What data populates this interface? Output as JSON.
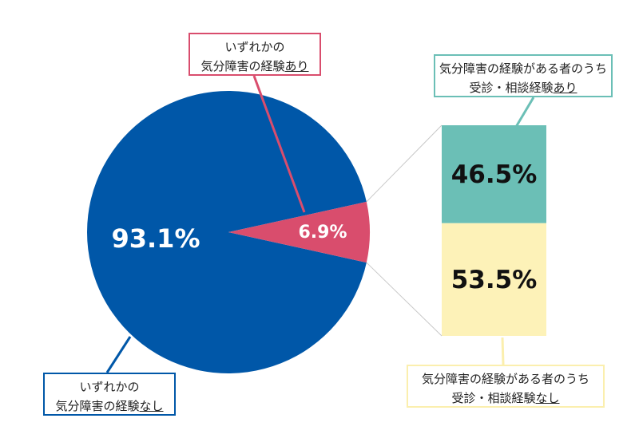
{
  "chart_data": [
    {
      "type": "pie",
      "slices": [
        {
          "value": 93.1,
          "display": "93.1%",
          "label": [
            "いずれかの",
            "気分障害の経験",
            "なし"
          ],
          "color": "#0057A8"
        },
        {
          "value": 6.9,
          "display": "6.9%",
          "label": [
            "いずれかの",
            "気分障害の経験",
            "あり"
          ],
          "color": "#D94D6D"
        }
      ]
    },
    {
      "type": "bar",
      "stacked": true,
      "segments": [
        {
          "value": 46.5,
          "display": "46.5%",
          "label": [
            "気分障害の経験がある者のうち",
            "受診・相談経験",
            "あり"
          ],
          "color": "#6BBFB6"
        },
        {
          "value": 53.5,
          "display": "53.5%",
          "label": [
            "気分障害の経験がある者のうち",
            "受診・相談経験",
            "なし"
          ],
          "color": "#FDF2B8"
        }
      ]
    }
  ]
}
